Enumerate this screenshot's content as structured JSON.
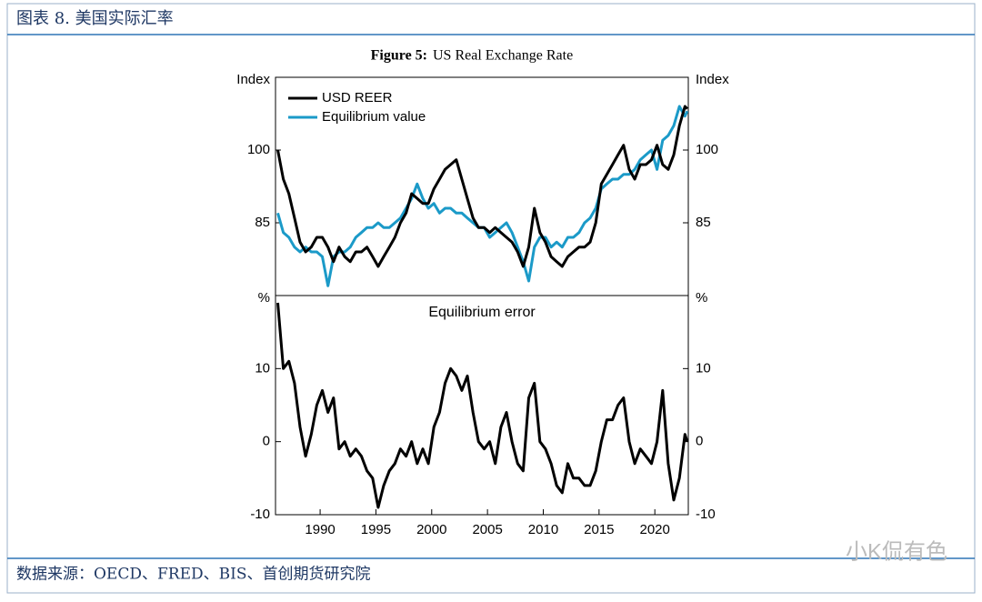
{
  "header": {
    "title": "图表 8. 美国实际汇率"
  },
  "figure": {
    "label": "Figure 5:",
    "title": "US Real Exchange Rate"
  },
  "footer": {
    "source": "数据来源：OECD、FRED、BIS、首创期货研究院",
    "watermark": "小K侃有色"
  },
  "chart_data": [
    {
      "type": "line",
      "ylabel": "Index",
      "y2label": "Index",
      "xlim": [
        1986,
        2023
      ],
      "ylim": [
        70,
        115
      ],
      "yticks": [
        85,
        100
      ],
      "y2lim": [
        70,
        115
      ],
      "y2ticks": [
        85,
        100
      ],
      "legend": "top-left",
      "x": [
        1986.2,
        1986.7,
        1987.2,
        1987.7,
        1988.2,
        1988.7,
        1989.2,
        1989.7,
        1990.2,
        1990.7,
        1991.2,
        1991.7,
        1992.2,
        1992.7,
        1993.2,
        1993.7,
        1994.2,
        1994.7,
        1995.2,
        1995.7,
        1996.2,
        1996.7,
        1997.2,
        1997.7,
        1998.2,
        1998.7,
        1999.2,
        1999.7,
        2000.2,
        2000.7,
        2001.2,
        2001.7,
        2002.2,
        2002.7,
        2003.2,
        2003.7,
        2004.2,
        2004.7,
        2005.2,
        2005.7,
        2006.2,
        2006.7,
        2007.2,
        2007.7,
        2008.2,
        2008.7,
        2009.2,
        2009.7,
        2010.2,
        2010.7,
        2011.2,
        2011.7,
        2012.2,
        2012.7,
        2013.2,
        2013.7,
        2014.2,
        2014.7,
        2015.2,
        2015.7,
        2016.2,
        2016.7,
        2017.2,
        2017.7,
        2018.2,
        2018.7,
        2019.2,
        2019.7,
        2020.2,
        2020.7,
        2021.2,
        2021.7,
        2022.2,
        2022.7,
        2022.9
      ],
      "series": [
        {
          "name": "USD REER",
          "color": "#000000",
          "values": [
            100,
            94,
            91,
            86,
            81,
            79,
            80,
            82,
            82,
            80,
            77,
            80,
            78,
            77,
            79,
            79,
            80,
            78,
            76,
            78,
            80,
            82,
            85,
            87,
            91,
            90,
            89,
            89,
            92,
            94,
            96,
            97,
            98,
            94,
            90,
            86,
            84,
            84,
            83,
            84,
            83,
            82,
            81,
            79,
            76,
            80,
            88,
            83,
            81,
            78,
            77,
            76,
            78,
            79,
            80,
            80,
            81,
            85,
            93,
            95,
            97,
            99,
            101,
            96,
            94,
            97,
            97,
            98,
            101,
            97,
            96,
            99,
            105,
            109,
            108.5
          ]
        },
        {
          "name": "Equilibrium value",
          "color": "#1b9ac8",
          "values": [
            87,
            83,
            82,
            80,
            79,
            80,
            79,
            79,
            78,
            72,
            78,
            79,
            79,
            80,
            82,
            83,
            84,
            84,
            85,
            84,
            84,
            85,
            86,
            88,
            90,
            93,
            90,
            88,
            89,
            87,
            88,
            88,
            87,
            87,
            86,
            85,
            84,
            84,
            82,
            83,
            84,
            85,
            83,
            80,
            77,
            73,
            80,
            82,
            82,
            80,
            81,
            80,
            82,
            82,
            83,
            85,
            86,
            88,
            92,
            93,
            94,
            94,
            95,
            95,
            96,
            98,
            99,
            100,
            96,
            102,
            103,
            105,
            109,
            107,
            108
          ]
        }
      ]
    },
    {
      "type": "line",
      "title": "Equilibrium error",
      "ylabel": "%",
      "y2label": "%",
      "xlim": [
        1986,
        2023
      ],
      "xticks": [
        1990,
        1995,
        2000,
        2005,
        2010,
        2015,
        2020
      ],
      "ylim": [
        -10,
        20
      ],
      "yticks": [
        -10,
        0,
        10
      ],
      "y2lim": [
        -10,
        20
      ],
      "y2ticks": [
        -10,
        0,
        10
      ],
      "x": [
        1986.2,
        1986.7,
        1987.2,
        1987.7,
        1988.2,
        1988.7,
        1989.2,
        1989.7,
        1990.2,
        1990.7,
        1991.2,
        1991.7,
        1992.2,
        1992.7,
        1993.2,
        1993.7,
        1994.2,
        1994.7,
        1995.2,
        1995.7,
        1996.2,
        1996.7,
        1997.2,
        1997.7,
        1998.2,
        1998.7,
        1999.2,
        1999.7,
        2000.2,
        2000.7,
        2001.2,
        2001.7,
        2002.2,
        2002.7,
        2003.2,
        2003.7,
        2004.2,
        2004.7,
        2005.2,
        2005.7,
        2006.2,
        2006.7,
        2007.2,
        2007.7,
        2008.2,
        2008.7,
        2009.2,
        2009.7,
        2010.2,
        2010.7,
        2011.2,
        2011.7,
        2012.2,
        2012.7,
        2013.2,
        2013.7,
        2014.2,
        2014.7,
        2015.2,
        2015.7,
        2016.2,
        2016.7,
        2017.2,
        2017.7,
        2018.2,
        2018.7,
        2019.2,
        2019.7,
        2020.2,
        2020.7,
        2021.2,
        2021.7,
        2022.2,
        2022.7,
        2022.9
      ],
      "series": [
        {
          "color": "#000000",
          "values": [
            19,
            10,
            11,
            8,
            2,
            -2,
            1,
            5,
            7,
            4,
            6,
            -1,
            0,
            -2,
            -1,
            -2,
            -4,
            -5,
            -9,
            -6,
            -4,
            -3,
            -1,
            -2,
            0,
            -3,
            -1,
            -3,
            2,
            4,
            8,
            10,
            9,
            7,
            9,
            4,
            0,
            -1,
            0,
            -3,
            2,
            4,
            0,
            -3,
            -4,
            6,
            8,
            0,
            -1,
            -3,
            -6,
            -7,
            -3,
            -5,
            -5,
            -6,
            -6,
            -4,
            0,
            3,
            3,
            5,
            6,
            0,
            -3,
            -1,
            -2,
            -3,
            0,
            7,
            -3,
            -8,
            -5,
            1,
            0
          ]
        }
      ]
    }
  ]
}
